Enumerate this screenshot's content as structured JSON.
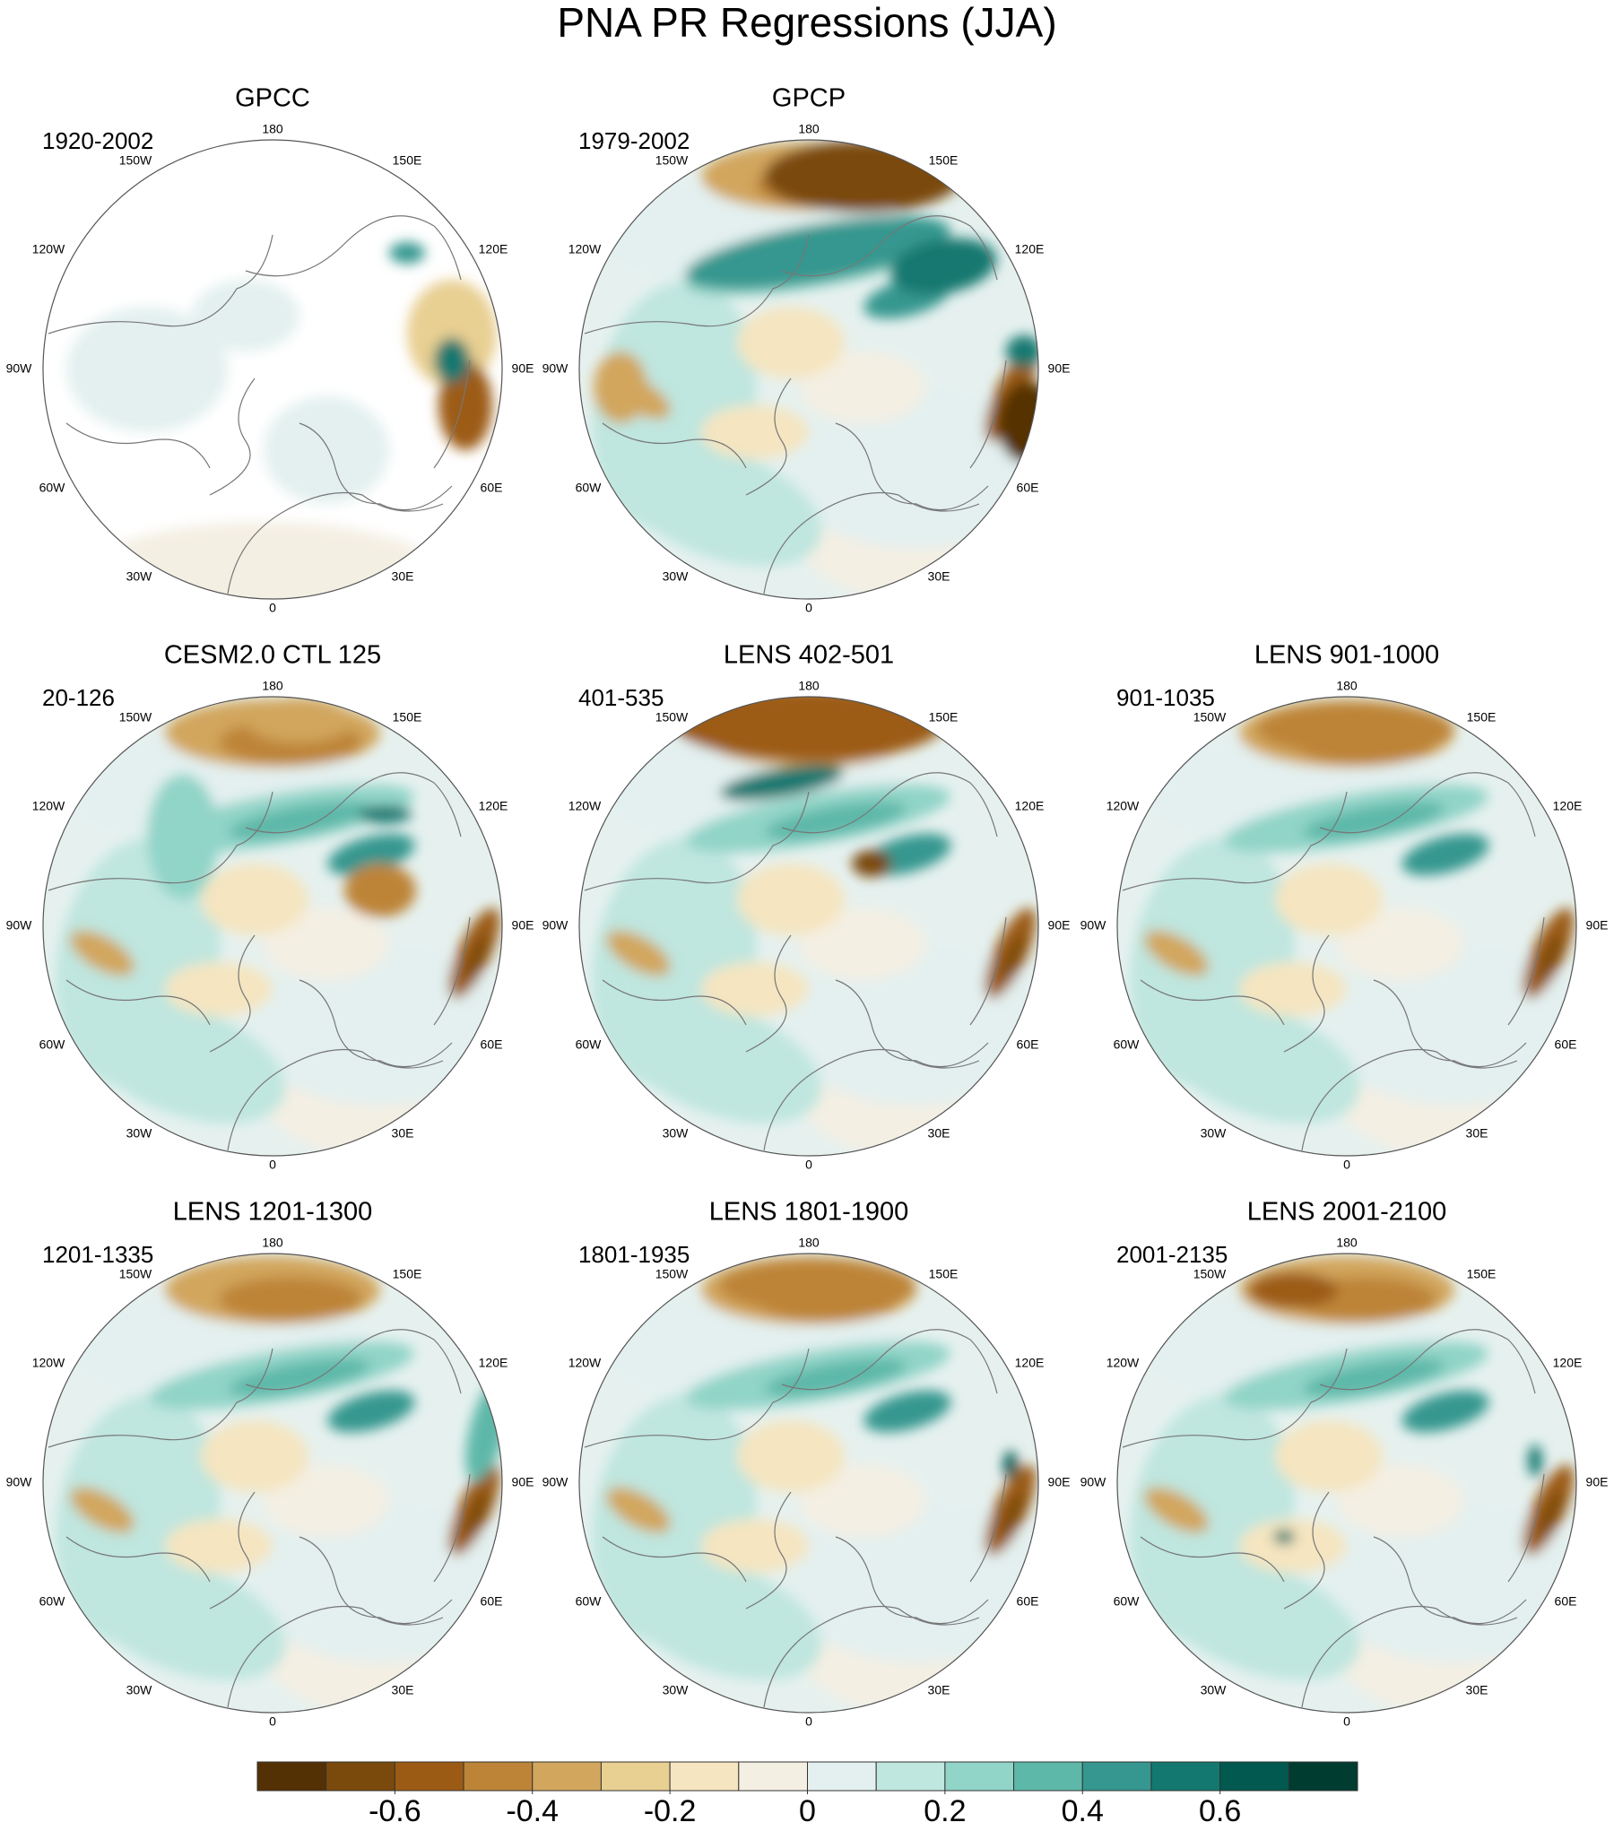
{
  "title": "PNA PR Regressions (JJA)",
  "panels": [
    {
      "title": "GPCC",
      "period": "1920-2002"
    },
    {
      "title": "GPCP",
      "period": "1979-2002"
    },
    {
      "title": "CESM2.0 CTL 125",
      "period": "20-126"
    },
    {
      "title": "LENS 402-501",
      "period": "401-535"
    },
    {
      "title": "LENS 901-1000",
      "period": "901-1035"
    },
    {
      "title": "LENS 1201-1300",
      "period": "1201-1335"
    },
    {
      "title": "LENS 1801-1900",
      "period": "1801-1935"
    },
    {
      "title": "LENS 2001-2100",
      "period": "2001-2135"
    }
  ],
  "longitude_labels": [
    "180",
    "150E",
    "120E",
    "90E",
    "60E",
    "30E",
    "0",
    "30W",
    "60W",
    "90W",
    "120W",
    "150W"
  ],
  "colorbar": {
    "levels": [
      -0.7,
      -0.6,
      -0.5,
      -0.4,
      -0.3,
      -0.2,
      -0.1,
      0,
      0.1,
      0.2,
      0.3,
      0.4,
      0.5,
      0.6,
      0.7
    ],
    "colors": [
      "#543005",
      "#7a4a0c",
      "#9c5b14",
      "#bd8437",
      "#d2a65d",
      "#e8cf92",
      "#f5e5c0",
      "#f4efe3",
      "#e3f0ef",
      "#bfe6df",
      "#91d4c8",
      "#5db8a9",
      "#35978f",
      "#137870",
      "#01594f",
      "#003c30"
    ],
    "ticks": [
      -0.6,
      -0.4,
      -0.2,
      0,
      0.2,
      0.4,
      0.6
    ]
  }
}
